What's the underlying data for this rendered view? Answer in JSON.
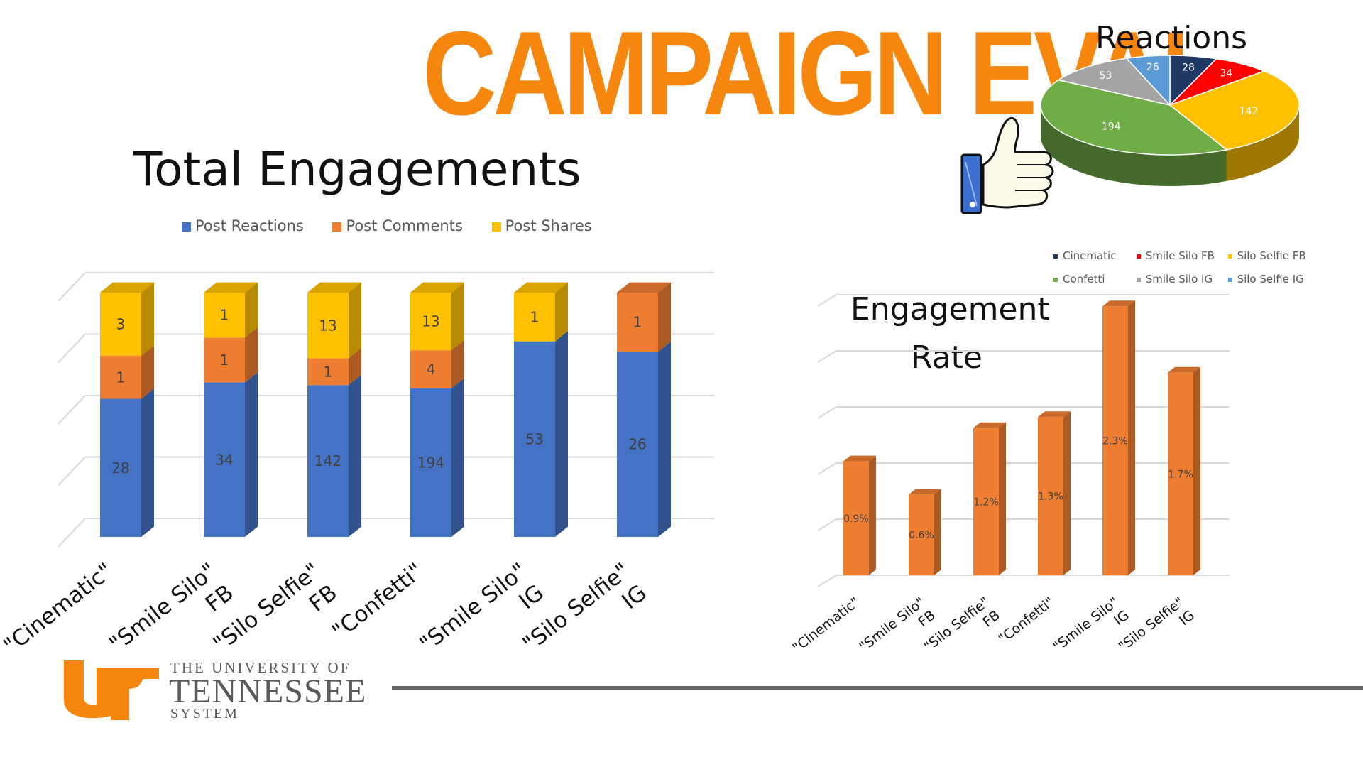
{
  "title": "CAMPAIGN EVAL",
  "colors": {
    "accent": "#f7860f",
    "reactions": "#4472c4",
    "comments": "#ed7d31",
    "shares": "#ffc000",
    "cinematic": "#1f3864",
    "smile_silo_fb": "#ff0000",
    "silo_selfie_fb": "#ffc000",
    "confetti": "#70ad47",
    "smile_silo_ig": "#a5a5a5",
    "silo_selfie_ig": "#5b9bd5"
  },
  "icons": {
    "thumbs_up": "thumbs-up-icon"
  },
  "university": {
    "line1": "THE UNIVERSITY OF",
    "line2": "TENNESSEE",
    "line3": "SYSTEM",
    "logo_text": "UT"
  },
  "chart_data": [
    {
      "type": "bar",
      "stacked": true,
      "title": "Total Engagements",
      "categories": [
        "\"Cinematic\"",
        "\"Smile Silo\" FB",
        "\"Silo Selfie\" FB",
        "\"Confetti\"",
        "\"Smile Silo\" IG",
        "\"Silo Selfie\" IG"
      ],
      "category_lines": [
        [
          "\"Cinematic\""
        ],
        [
          "\"Smile Silo\"",
          "FB"
        ],
        [
          "\"Silo Selfie\"",
          "FB"
        ],
        [
          "\"Confetti\""
        ],
        [
          "\"Smile Silo\"",
          "IG"
        ],
        [
          "\"Silo Selfie\"",
          "IG"
        ]
      ],
      "series": [
        {
          "name": "Post Reactions",
          "values": [
            28,
            34,
            142,
            194,
            53,
            26
          ]
        },
        {
          "name": "Post Comments",
          "values": [
            1,
            1,
            1,
            4,
            0,
            1
          ]
        },
        {
          "name": "Post Shares",
          "values": [
            3,
            1,
            13,
            13,
            1,
            0
          ]
        }
      ],
      "legend": "top",
      "grid": true
    },
    {
      "type": "pie",
      "title": "Reactions",
      "labels": [
        "Cinematic",
        "Smile Silo FB",
        "Silo Selfie FB",
        "Confetti",
        "Smile Silo IG",
        "Silo Selfie IG"
      ],
      "values": [
        28,
        34,
        142,
        194,
        53,
        26
      ],
      "legend": "bottom"
    },
    {
      "type": "bar",
      "title": "Engagement Rate",
      "title_lines": [
        "Engagement",
        "Rate"
      ],
      "categories": [
        "\"Cinematic\"",
        "\"Smile Silo\" FB",
        "\"Silo Selfie\" FB",
        "\"Confetti\"",
        "\"Smile Silo\" IG",
        "\"Silo Selfie\" IG"
      ],
      "category_lines": [
        [
          "\"Cinematic\""
        ],
        [
          "\"Smile Silo\"",
          "FB"
        ],
        [
          "\"Silo Selfie\"",
          "FB"
        ],
        [
          "\"Confetti\""
        ],
        [
          "\"Smile Silo\"",
          "IG"
        ],
        [
          "\"Silo Selfie\"",
          "IG"
        ]
      ],
      "values": [
        0.9,
        0.6,
        1.2,
        1.3,
        2.3,
        1.7
      ],
      "value_labels": [
        "0.9%",
        "0.6%",
        "1.2%",
        "1.3%",
        "2.3%",
        "1.7%"
      ],
      "unit": "%",
      "grid": true
    }
  ]
}
